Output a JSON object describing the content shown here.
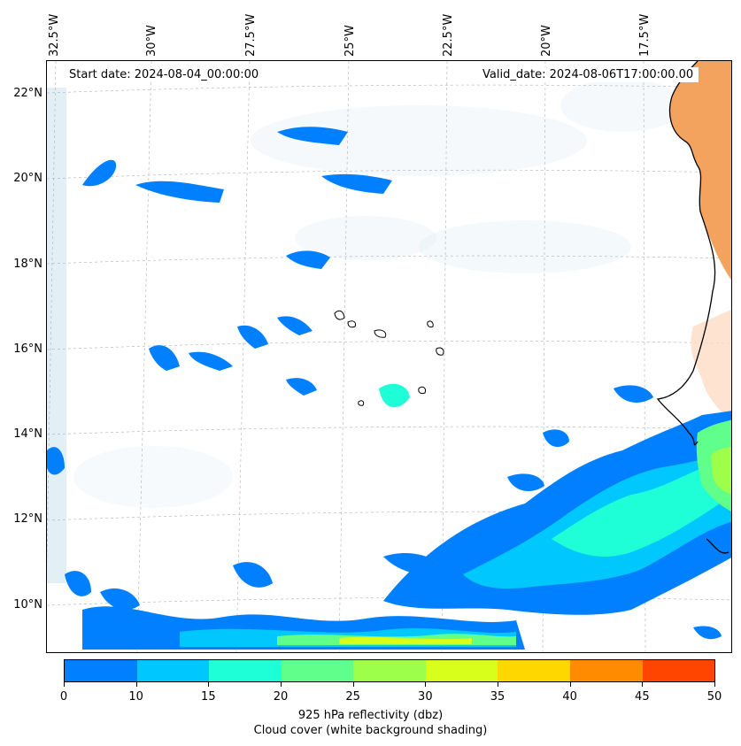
{
  "map": {
    "start_date": "Start date: 2024-08-04_00:00:00",
    "valid_date": "Valid_date: 2024-08-06T17:00:00.00",
    "lon_labels": [
      "32.5°W",
      "30°W",
      "27.5°W",
      "25°W",
      "22.5°W",
      "20°W",
      "17.5°W"
    ],
    "lat_labels": [
      "22°N",
      "20°N",
      "18°N",
      "16°N",
      "14°N",
      "12°N",
      "10°N"
    ],
    "coastline_color": "#000000",
    "land_color": "#f4a35e",
    "cloud_color": "#d6e9ef"
  },
  "colorbar": {
    "ticks": [
      "0",
      "10",
      "15",
      "20",
      "25",
      "30",
      "35",
      "40",
      "45",
      "50"
    ],
    "colors": [
      "#0080ff",
      "#00c8ff",
      "#1effd8",
      "#60ff8c",
      "#9dff4a",
      "#d8ff1c",
      "#ffd700",
      "#ff8c00",
      "#ff4500"
    ],
    "title": "925 hPa reflectivity (dbz)",
    "subtitle": "Cloud cover (white background shading)"
  }
}
